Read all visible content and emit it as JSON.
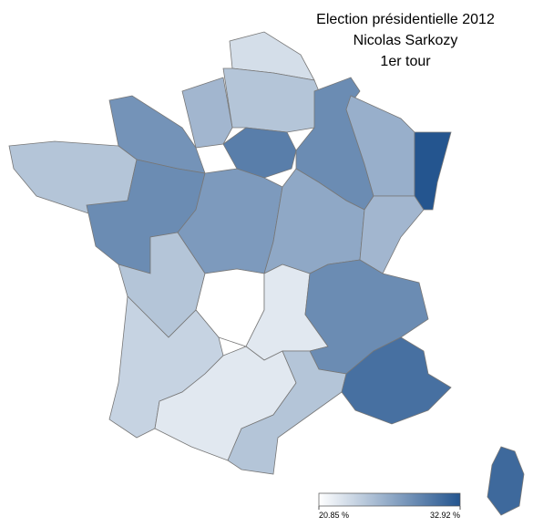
{
  "chart_data": {
    "type": "choropleth",
    "title": [
      "Election présidentielle 2012",
      "Nicolas Sarkozy",
      "1er tour"
    ],
    "values": [
      23.2,
      25.0,
      26.0,
      28.5,
      25.0,
      29.0,
      30.0,
      28.0,
      29.0,
      26.5,
      32.92,
      27.0,
      26.0,
      25.0,
      20.85,
      22.5,
      29.0,
      24.0,
      22.5,
      25.0,
      31.0,
      31.5
    ],
    "colors": [
      "#ffffff",
      "#24558f"
    ],
    "legend_ticks": [
      {
        "value": 20.85,
        "label": "20.85 %"
      },
      {
        "value": 32.92,
        "label": "32.92 %"
      }
    ]
  }
}
